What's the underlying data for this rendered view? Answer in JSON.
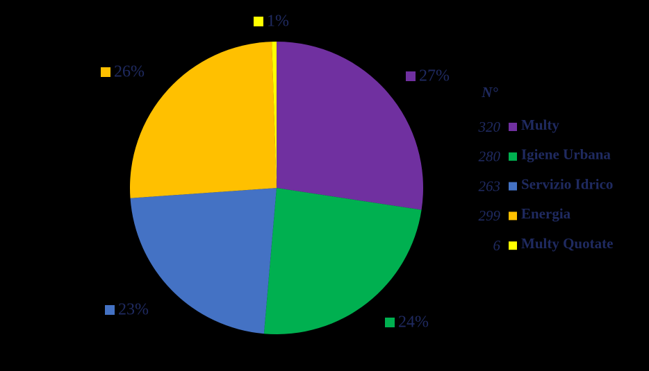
{
  "chart_data": {
    "type": "pie",
    "legend_title": "N°",
    "categories": [
      "Multy",
      "Igiene Urbana",
      "Servizio Idrico",
      "Energia",
      "Multy Quotate"
    ],
    "values": [
      320,
      280,
      263,
      299,
      6
    ],
    "percentages": [
      27,
      24,
      23,
      26,
      1
    ],
    "percentage_labels": [
      "27%",
      "24%",
      "23%",
      "26%",
      "1%"
    ],
    "colors": [
      "#7030a0",
      "#00b050",
      "#4472c4",
      "#ffc000",
      "#ffff00"
    ],
    "legend": "right"
  }
}
